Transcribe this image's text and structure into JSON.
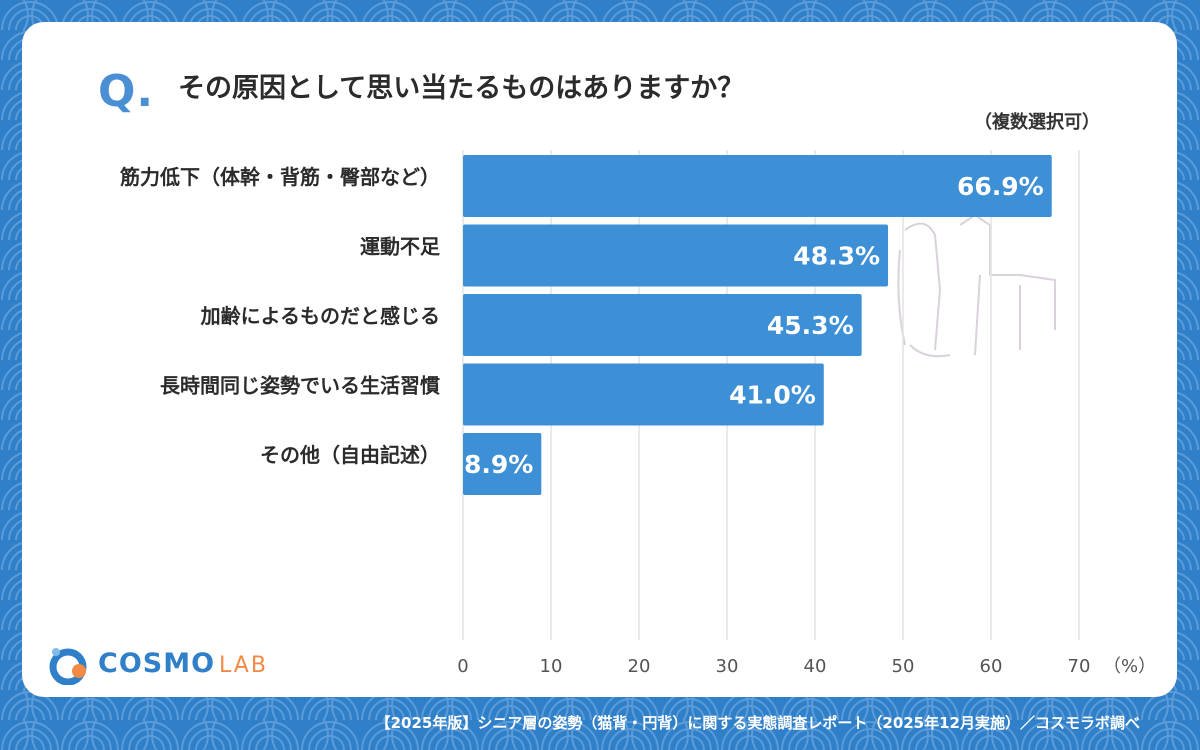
{
  "question": {
    "mark": "Q.",
    "title": "その原因として思い当たるものはありますか？",
    "note": "（複数選択可）"
  },
  "chart_data": {
    "type": "bar",
    "orientation": "horizontal",
    "categories": [
      "筋力低下（体幹・背筋・臀部など）",
      "運動不足",
      "加齢によるものだと感じる",
      "長時間同じ姿勢でいる生活習慣",
      "その他（自由記述）"
    ],
    "values": [
      66.9,
      48.3,
      45.3,
      41.0,
      8.9
    ],
    "value_labels": [
      "66.9%",
      "48.3%",
      "45.3%",
      "41.0%",
      "8.9%"
    ],
    "xlim": [
      0,
      70
    ],
    "xticks": [
      "0",
      "10",
      "20",
      "30",
      "40",
      "50",
      "60",
      "70"
    ],
    "x_unit": "（%）",
    "bar_color": "#3d8fd6",
    "grid": true
  },
  "brand": {
    "name_main": "COSMO",
    "name_sub": "LAB",
    "primary_color": "#2f7fc9",
    "accent_color": "#f28a45"
  },
  "footer": {
    "text": "【2025年版】シニア層の姿勢（猫背・円背）に関する実態調査レポート（2025年12月実施）／コスモラボ調べ"
  }
}
